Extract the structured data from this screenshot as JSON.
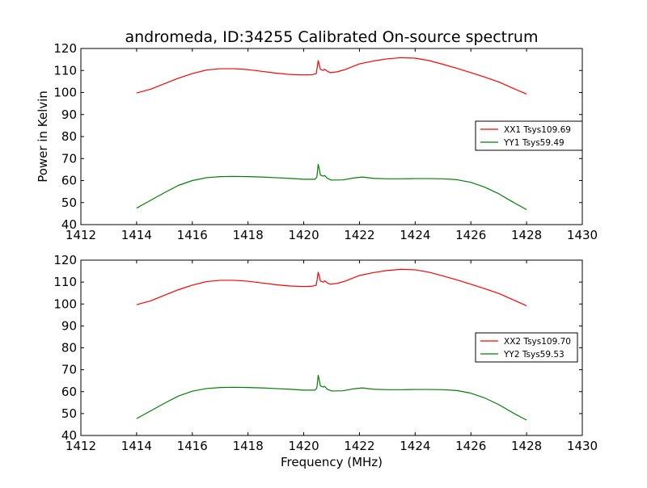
{
  "figure": {
    "title": "andromeda, ID:34255 Calibrated On-source spectrum",
    "xlabel": "Frequency (MHz)",
    "ylabel": "Power in Kelvin"
  },
  "chart_data": [
    {
      "type": "line",
      "title": "andromeda, ID:34255 Calibrated On-source spectrum",
      "xlabel": "",
      "ylabel": "Power in Kelvin",
      "xlim": [
        1412,
        1430
      ],
      "ylim": [
        40,
        120
      ],
      "xticks": [
        1412,
        1414,
        1416,
        1418,
        1420,
        1422,
        1424,
        1426,
        1428,
        1430
      ],
      "yticks": [
        40,
        50,
        60,
        70,
        80,
        90,
        100,
        110,
        120
      ],
      "grid": false,
      "legend": "right",
      "series": [
        {
          "name": "XX1 Tsys109.69",
          "color": "#ff0000",
          "points": [
            [
              1414.0,
              99.8
            ],
            [
              1414.5,
              101.5
            ],
            [
              1415.0,
              104.0
            ],
            [
              1415.5,
              106.5
            ],
            [
              1416.0,
              108.6
            ],
            [
              1416.5,
              110.2
            ],
            [
              1417.0,
              110.8
            ],
            [
              1417.5,
              110.8
            ],
            [
              1418.0,
              110.4
            ],
            [
              1418.5,
              109.6
            ],
            [
              1419.0,
              108.8
            ],
            [
              1419.5,
              108.2
            ],
            [
              1420.0,
              108.0
            ],
            [
              1420.3,
              108.1
            ],
            [
              1420.45,
              108.6
            ],
            [
              1420.52,
              114.5
            ],
            [
              1420.6,
              110.5
            ],
            [
              1420.7,
              110.0
            ],
            [
              1420.75,
              110.6
            ],
            [
              1420.85,
              109.6
            ],
            [
              1420.95,
              109.0
            ],
            [
              1421.2,
              109.4
            ],
            [
              1421.5,
              110.5
            ],
            [
              1422.0,
              113.0
            ],
            [
              1422.5,
              114.3
            ],
            [
              1423.0,
              115.3
            ],
            [
              1423.5,
              115.8
            ],
            [
              1424.0,
              115.6
            ],
            [
              1424.5,
              114.5
            ],
            [
              1425.0,
              112.8
            ],
            [
              1425.5,
              111.0
            ],
            [
              1426.0,
              109.0
            ],
            [
              1426.5,
              107.0
            ],
            [
              1427.0,
              104.8
            ],
            [
              1427.5,
              102.0
            ],
            [
              1428.0,
              99.3
            ]
          ]
        },
        {
          "name": "YY1 Tsys59.49",
          "color": "#008000",
          "points": [
            [
              1414.0,
              47.5
            ],
            [
              1414.5,
              51.0
            ],
            [
              1415.0,
              54.5
            ],
            [
              1415.5,
              57.8
            ],
            [
              1416.0,
              60.0
            ],
            [
              1416.5,
              61.3
            ],
            [
              1417.0,
              61.8
            ],
            [
              1417.5,
              61.9
            ],
            [
              1418.0,
              61.8
            ],
            [
              1418.5,
              61.6
            ],
            [
              1419.0,
              61.3
            ],
            [
              1419.5,
              61.0
            ],
            [
              1420.0,
              60.6
            ],
            [
              1420.4,
              60.6
            ],
            [
              1420.47,
              61.5
            ],
            [
              1420.52,
              67.4
            ],
            [
              1420.6,
              62.5
            ],
            [
              1420.7,
              62.0
            ],
            [
              1420.75,
              62.3
            ],
            [
              1420.85,
              61.0
            ],
            [
              1421.0,
              60.2
            ],
            [
              1421.4,
              60.3
            ],
            [
              1421.8,
              61.2
            ],
            [
              1422.1,
              61.6
            ],
            [
              1422.5,
              61.0
            ],
            [
              1423.0,
              60.8
            ],
            [
              1423.5,
              60.8
            ],
            [
              1424.0,
              60.9
            ],
            [
              1424.5,
              60.9
            ],
            [
              1425.0,
              60.8
            ],
            [
              1425.5,
              60.4
            ],
            [
              1426.0,
              59.2
            ],
            [
              1426.5,
              57.0
            ],
            [
              1427.0,
              54.0
            ],
            [
              1427.5,
              50.3
            ],
            [
              1428.0,
              46.8
            ]
          ]
        }
      ]
    },
    {
      "type": "line",
      "title": "",
      "xlabel": "Frequency (MHz)",
      "ylabel": "",
      "xlim": [
        1412,
        1430
      ],
      "ylim": [
        40,
        120
      ],
      "xticks": [
        1412,
        1414,
        1416,
        1418,
        1420,
        1422,
        1424,
        1426,
        1428,
        1430
      ],
      "yticks": [
        40,
        50,
        60,
        70,
        80,
        90,
        100,
        110,
        120
      ],
      "grid": false,
      "legend": "right",
      "series": [
        {
          "name": "XX2 Tsys109.70",
          "color": "#ff0000",
          "points": [
            [
              1414.0,
              99.7
            ],
            [
              1414.5,
              101.4
            ],
            [
              1415.0,
              104.0
            ],
            [
              1415.5,
              106.5
            ],
            [
              1416.0,
              108.6
            ],
            [
              1416.5,
              110.2
            ],
            [
              1417.0,
              110.8
            ],
            [
              1417.5,
              110.8
            ],
            [
              1418.0,
              110.4
            ],
            [
              1418.5,
              109.6
            ],
            [
              1419.0,
              108.8
            ],
            [
              1419.5,
              108.2
            ],
            [
              1420.0,
              108.0
            ],
            [
              1420.3,
              108.1
            ],
            [
              1420.45,
              108.6
            ],
            [
              1420.52,
              114.5
            ],
            [
              1420.6,
              110.5
            ],
            [
              1420.7,
              110.0
            ],
            [
              1420.75,
              110.6
            ],
            [
              1420.85,
              109.6
            ],
            [
              1420.95,
              109.0
            ],
            [
              1421.2,
              109.4
            ],
            [
              1421.5,
              110.5
            ],
            [
              1422.0,
              113.0
            ],
            [
              1422.5,
              114.3
            ],
            [
              1423.0,
              115.3
            ],
            [
              1423.5,
              115.8
            ],
            [
              1424.0,
              115.6
            ],
            [
              1424.5,
              114.5
            ],
            [
              1425.0,
              112.8
            ],
            [
              1425.5,
              111.0
            ],
            [
              1426.0,
              109.0
            ],
            [
              1426.5,
              107.0
            ],
            [
              1427.0,
              104.8
            ],
            [
              1427.5,
              102.0
            ],
            [
              1428.0,
              99.2
            ]
          ]
        },
        {
          "name": "YY2 Tsys59.53",
          "color": "#008000",
          "points": [
            [
              1414.0,
              47.7
            ],
            [
              1414.5,
              51.2
            ],
            [
              1415.0,
              54.7
            ],
            [
              1415.5,
              58.0
            ],
            [
              1416.0,
              60.2
            ],
            [
              1416.5,
              61.4
            ],
            [
              1417.0,
              61.9
            ],
            [
              1417.5,
              62.0
            ],
            [
              1418.0,
              61.9
            ],
            [
              1418.5,
              61.7
            ],
            [
              1419.0,
              61.4
            ],
            [
              1419.5,
              61.1
            ],
            [
              1420.0,
              60.7
            ],
            [
              1420.4,
              60.7
            ],
            [
              1420.47,
              61.6
            ],
            [
              1420.52,
              67.5
            ],
            [
              1420.6,
              62.6
            ],
            [
              1420.7,
              62.1
            ],
            [
              1420.75,
              62.4
            ],
            [
              1420.85,
              61.1
            ],
            [
              1421.0,
              60.3
            ],
            [
              1421.4,
              60.4
            ],
            [
              1421.8,
              61.3
            ],
            [
              1422.1,
              61.7
            ],
            [
              1422.5,
              61.1
            ],
            [
              1423.0,
              60.9
            ],
            [
              1423.5,
              60.9
            ],
            [
              1424.0,
              61.0
            ],
            [
              1424.5,
              61.0
            ],
            [
              1425.0,
              60.9
            ],
            [
              1425.5,
              60.5
            ],
            [
              1426.0,
              59.3
            ],
            [
              1426.5,
              57.1
            ],
            [
              1427.0,
              54.1
            ],
            [
              1427.5,
              50.4
            ],
            [
              1428.0,
              47.0
            ]
          ]
        }
      ]
    }
  ]
}
